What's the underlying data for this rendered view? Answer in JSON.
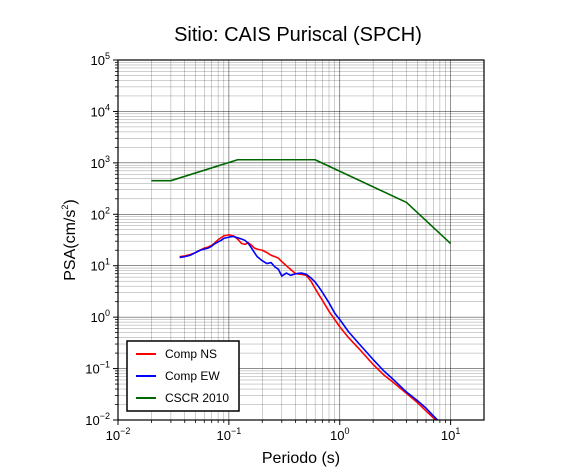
{
  "chart_data": {
    "type": "line",
    "title": "Sitio: CAIS Puriscal (SPCH)",
    "xlabel": "Periodo (s)",
    "ylabel": {
      "base": "PSA(cm/s",
      "exp": "2",
      "close": ")"
    },
    "xscale": "log",
    "yscale": "log",
    "xlim": [
      0.01,
      20
    ],
    "ylim": [
      0.01,
      100000
    ],
    "xticks": [
      {
        "base": "10",
        "exp": "−2",
        "value": 0.01
      },
      {
        "base": "10",
        "exp": "−1",
        "value": 0.1
      },
      {
        "base": "10",
        "exp": "0",
        "value": 1
      },
      {
        "base": "10",
        "exp": "1",
        "value": 10
      }
    ],
    "yticks": [
      {
        "base": "10",
        "exp": "−2",
        "value": 0.01
      },
      {
        "base": "10",
        "exp": "−1",
        "value": 0.1
      },
      {
        "base": "10",
        "exp": "0",
        "value": 1
      },
      {
        "base": "10",
        "exp": "1",
        "value": 10
      },
      {
        "base": "10",
        "exp": "2",
        "value": 100
      },
      {
        "base": "10",
        "exp": "3",
        "value": 1000
      },
      {
        "base": "10",
        "exp": "4",
        "value": 10000
      },
      {
        "base": "10",
        "exp": "5",
        "value": 100000
      }
    ],
    "grid": true,
    "legend_position": "bottom-left",
    "series": [
      {
        "name": "Comp NS",
        "color": "#ff0000",
        "x": [
          0.036,
          0.04,
          0.045,
          0.05,
          0.055,
          0.06,
          0.065,
          0.07,
          0.075,
          0.08,
          0.085,
          0.09,
          0.1,
          0.11,
          0.12,
          0.13,
          0.14,
          0.15,
          0.16,
          0.17,
          0.18,
          0.2,
          0.22,
          0.24,
          0.26,
          0.28,
          0.3,
          0.33,
          0.36,
          0.4,
          0.45,
          0.5,
          0.55,
          0.6,
          0.65,
          0.7,
          0.8,
          0.9,
          1.0,
          1.2,
          1.5,
          2.0,
          2.5,
          3.0,
          4.0,
          5.0,
          6.0,
          7.0,
          8.0
        ],
        "y": [
          15,
          15.5,
          16.5,
          18,
          20,
          22,
          23,
          25,
          28,
          32,
          35,
          38,
          40,
          38,
          33,
          27,
          26,
          28,
          25,
          22,
          21,
          20,
          18,
          16,
          15,
          14,
          12,
          10,
          8.5,
          7,
          6.8,
          6.5,
          5,
          3.6,
          2.7,
          2.1,
          1.3,
          0.9,
          0.65,
          0.4,
          0.24,
          0.12,
          0.075,
          0.055,
          0.033,
          0.022,
          0.015,
          0.011,
          0.0085
        ]
      },
      {
        "name": "Comp EW",
        "color": "#0000ff",
        "x": [
          0.036,
          0.04,
          0.045,
          0.05,
          0.055,
          0.06,
          0.065,
          0.07,
          0.075,
          0.08,
          0.085,
          0.09,
          0.1,
          0.11,
          0.12,
          0.13,
          0.14,
          0.15,
          0.16,
          0.17,
          0.18,
          0.2,
          0.22,
          0.24,
          0.26,
          0.28,
          0.3,
          0.33,
          0.36,
          0.4,
          0.45,
          0.5,
          0.55,
          0.6,
          0.65,
          0.7,
          0.8,
          0.9,
          1.0,
          1.2,
          1.5,
          2.0,
          2.5,
          3.0,
          4.0,
          5.0,
          6.0,
          7.0,
          8.0
        ],
        "y": [
          14.5,
          15,
          16,
          18,
          20,
          21,
          22,
          24,
          27,
          29,
          31,
          34,
          36,
          37,
          35,
          33,
          31,
          27,
          22,
          18,
          15,
          12.5,
          11,
          11.5,
          9.5,
          8.5,
          6.3,
          7.2,
          6.5,
          7,
          7.2,
          6.8,
          5.8,
          4.8,
          3.8,
          3,
          1.9,
          1.2,
          0.9,
          0.52,
          0.3,
          0.15,
          0.09,
          0.063,
          0.035,
          0.024,
          0.017,
          0.012,
          0.009
        ]
      },
      {
        "name": "CSCR 2010",
        "color": "#006600",
        "x": [
          0.02,
          0.03,
          0.12,
          0.6,
          4.0,
          10.0
        ],
        "y": [
          450,
          450,
          1150,
          1150,
          170,
          27
        ]
      }
    ]
  }
}
